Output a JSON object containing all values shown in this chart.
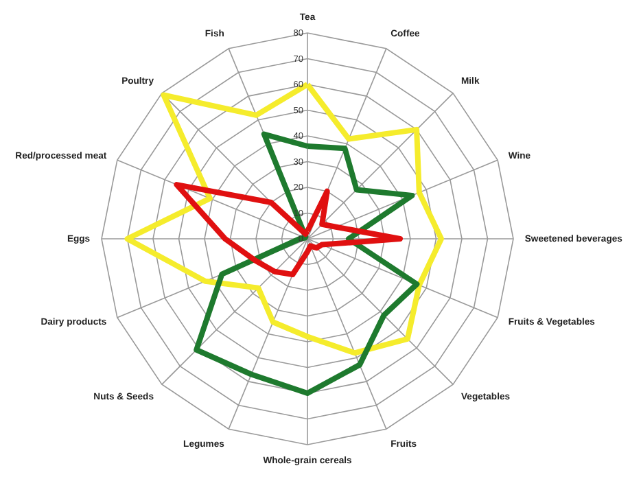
{
  "chart_data": {
    "type": "radar",
    "categories": [
      "Tea",
      "Coffee",
      "Milk",
      "Wine",
      "Sweetened beverages",
      "Fruits & Vegetables",
      "Vegetables",
      "Fruits",
      "Whole-grain cereals",
      "Legumes",
      "Nuts & Seeds",
      "Dairy products",
      "Eggs",
      "Red/processed meat",
      "Poultry",
      "Fish"
    ],
    "series": [
      {
        "color": "#f5ec2c",
        "values": [
          60,
          42,
          60,
          47,
          52,
          47,
          55,
          48,
          38,
          35,
          27,
          43,
          70,
          41,
          79,
          52
        ]
      },
      {
        "color": "#1e7a2e",
        "values": [
          36,
          38,
          27,
          44,
          16,
          46,
          42,
          53,
          60,
          57,
          61,
          36,
          3,
          1,
          1,
          44
        ]
      },
      {
        "color": "#e01010",
        "values": [
          3,
          20,
          8,
          12,
          36,
          6,
          5,
          3,
          5,
          15,
          18,
          22,
          32,
          55,
          20,
          2
        ]
      }
    ],
    "ylim": [
      0,
      80
    ],
    "yticks": [
      0,
      10,
      20,
      30,
      40,
      50,
      60,
      70,
      80
    ],
    "grid": true
  }
}
